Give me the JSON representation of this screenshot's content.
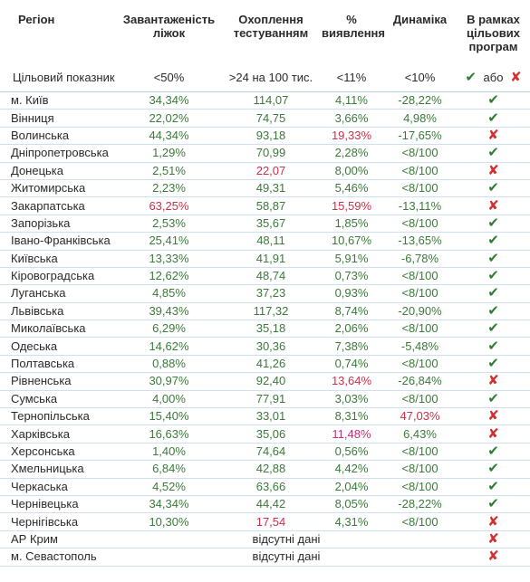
{
  "headers": {
    "region": "Регіон",
    "beds": "Завантаженість ліжок",
    "testing": "Охоплення тестуванням",
    "detection": "% виявлення",
    "dynamics": "Динаміка",
    "programs": "В рамках цільових програм"
  },
  "target": {
    "label": "Цільовий показник",
    "beds": "<50%",
    "testing": ">24 на 100 тис.",
    "detection": "<11%",
    "dynamics": "<10%",
    "or_text": "або"
  },
  "colors": {
    "good": "#3a7a3a",
    "bad": "#c8324a",
    "pink": "#c0307a",
    "check": "#2e7d32",
    "cross": "#d32f2f",
    "rule": "#cde0f1"
  },
  "rows": [
    {
      "region": "м. Київ",
      "beds": "34,34%",
      "testing": "114,07",
      "detection": "4,11%",
      "dynamics": "-28,22%",
      "program": "check"
    },
    {
      "region": "Вінниця",
      "beds": "22,02%",
      "testing": "74,75",
      "detection": "3,66%",
      "dynamics": "4,98%",
      "program": "check"
    },
    {
      "region": "Волинська",
      "beds": "44,34%",
      "testing": "93,18",
      "detection": "19,33%",
      "dynamics": "-17,65%",
      "program": "cross"
    },
    {
      "region": "Дніпропетровська",
      "beds": "1,29%",
      "testing": "70,99",
      "detection": "2,28%",
      "dynamics": "<8/100",
      "program": "check"
    },
    {
      "region": "Донецька",
      "beds": "2,51%",
      "testing": "22,07",
      "detection": "8,00%",
      "dynamics": "<8/100",
      "program": "cross"
    },
    {
      "region": "Житомирська",
      "beds": "2,23%",
      "testing": "49,31",
      "detection": "5,46%",
      "dynamics": "<8/100",
      "program": "check"
    },
    {
      "region": "Закарпатська",
      "beds": "63,25%",
      "testing": "58,87",
      "detection": "15,59%",
      "dynamics": "-13,11%",
      "program": "cross"
    },
    {
      "region": "Запорізька",
      "beds": "2,53%",
      "testing": "35,67",
      "detection": "1,85%",
      "dynamics": "<8/100",
      "program": "check"
    },
    {
      "region": "Івано-Франківська",
      "beds": "25,41%",
      "testing": "48,11",
      "detection": "10,67%",
      "dynamics": "-13,65%",
      "program": "check"
    },
    {
      "region": "Київська",
      "beds": "13,33%",
      "testing": "41,91",
      "detection": "5,91%",
      "dynamics": "-6,78%",
      "program": "check"
    },
    {
      "region": "Кіровоградська",
      "beds": "12,62%",
      "testing": "48,74",
      "detection": "0,73%",
      "dynamics": "<8/100",
      "program": "check"
    },
    {
      "region": "Луганська",
      "beds": "4,85%",
      "testing": "37,23",
      "detection": "0,93%",
      "dynamics": "<8/100",
      "program": "check"
    },
    {
      "region": "Львівська",
      "beds": "39,43%",
      "testing": "117,32",
      "detection": "8,74%",
      "dynamics": "-20,90%",
      "program": "check"
    },
    {
      "region": "Миколаївська",
      "beds": "6,29%",
      "testing": "35,18",
      "detection": "2,06%",
      "dynamics": "<8/100",
      "program": "check"
    },
    {
      "region": "Одеська",
      "beds": "14,62%",
      "testing": "30,36",
      "detection": "7,38%",
      "dynamics": "-5,48%",
      "program": "check"
    },
    {
      "region": "Полтавська",
      "beds": "0,88%",
      "testing": "41,26",
      "detection": "0,74%",
      "dynamics": "<8/100",
      "program": "check"
    },
    {
      "region": "Рівненська",
      "beds": "30,97%",
      "testing": "92,40",
      "detection": "13,64%",
      "dynamics": "-26,84%",
      "program": "cross"
    },
    {
      "region": "Сумська",
      "beds": "4,00%",
      "testing": "77,91",
      "detection": "3,03%",
      "dynamics": "<8/100",
      "program": "check"
    },
    {
      "region": "Тернопільська",
      "beds": "15,40%",
      "testing": "33,01",
      "detection": "8,31%",
      "dynamics": "47,03%",
      "program": "cross"
    },
    {
      "region": "Харківська",
      "beds": "16,63%",
      "testing": "35,06",
      "detection": "11,48%",
      "dynamics": "6,43%",
      "program": "cross"
    },
    {
      "region": "Херсонська",
      "beds": "1,40%",
      "testing": "74,64",
      "detection": "0,56%",
      "dynamics": "<8/100",
      "program": "check"
    },
    {
      "region": "Хмельницька",
      "beds": "6,84%",
      "testing": "42,88",
      "detection": "4,42%",
      "dynamics": "<8/100",
      "program": "check"
    },
    {
      "region": "Черкаська",
      "beds": "4,52%",
      "testing": "63,66",
      "detection": "2,04%",
      "dynamics": "<8/100",
      "program": "check"
    },
    {
      "region": "Чернівецька",
      "beds": "34,34%",
      "testing": "44,42",
      "detection": "8,05%",
      "dynamics": "-28,22%",
      "program": "check"
    },
    {
      "region": "Чернігівська",
      "beds": "10,30%",
      "testing": "17,54",
      "detection": "4,31%",
      "dynamics": "<8/100",
      "program": "cross"
    },
    {
      "region": "АР Крим",
      "nodata": "відсутні дані",
      "program": "cross"
    },
    {
      "region": "м. Севастополь",
      "nodata": "відсутні дані",
      "program": "cross"
    }
  ]
}
